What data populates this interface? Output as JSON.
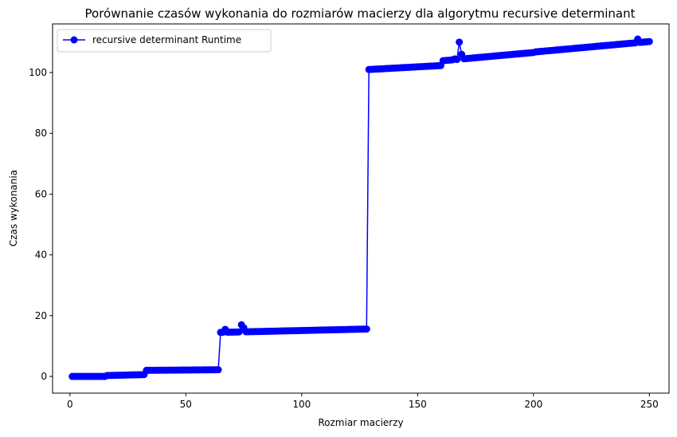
{
  "chart_data": {
    "type": "line",
    "title": "Porównanie czasów wykonania do rozmiarów macierzy dla algorytmu recursive determinant",
    "xlabel": "Rozmiar macierzy",
    "ylabel": "Czas wykonania",
    "xlim": [
      -7.5,
      258.5
    ],
    "ylim": [
      -5.5,
      116.0
    ],
    "xticks": [
      0,
      50,
      100,
      150,
      200,
      250
    ],
    "yticks": [
      0,
      20,
      40,
      60,
      80,
      100
    ],
    "grid": false,
    "legend_position": "top-left",
    "series": [
      {
        "name": "recursive determinant Runtime",
        "color": "#0000ff",
        "marker": "circle",
        "segments": [
          {
            "x_start": 1,
            "x_end": 15,
            "y_start": 0.0,
            "y_end": 0.0
          },
          {
            "x_start": 16,
            "x_end": 32,
            "y_start": 0.3,
            "y_end": 0.6
          },
          {
            "x_start": 33,
            "x_end": 64,
            "y_start": 2.0,
            "y_end": 2.2
          },
          {
            "x_start": 65,
            "x_end": 128,
            "y_start": 14.5,
            "y_end": 15.6
          },
          {
            "x_start": 129,
            "x_end": 160,
            "y_start": 101.0,
            "y_end": 102.3
          },
          {
            "x_start": 161,
            "x_end": 200,
            "y_start": 103.9,
            "y_end": 106.6
          },
          {
            "x_start": 201,
            "x_end": 250,
            "y_start": 106.8,
            "y_end": 110.2
          }
        ],
        "outliers": [
          {
            "x": 67,
            "y": 15.5
          },
          {
            "x": 74,
            "y": 17.0
          },
          {
            "x": 75,
            "y": 16.0
          },
          {
            "x": 166,
            "y": 104.5
          },
          {
            "x": 168,
            "y": 110.0
          },
          {
            "x": 169,
            "y": 106.0
          },
          {
            "x": 245,
            "y": 111.0
          }
        ]
      }
    ]
  }
}
